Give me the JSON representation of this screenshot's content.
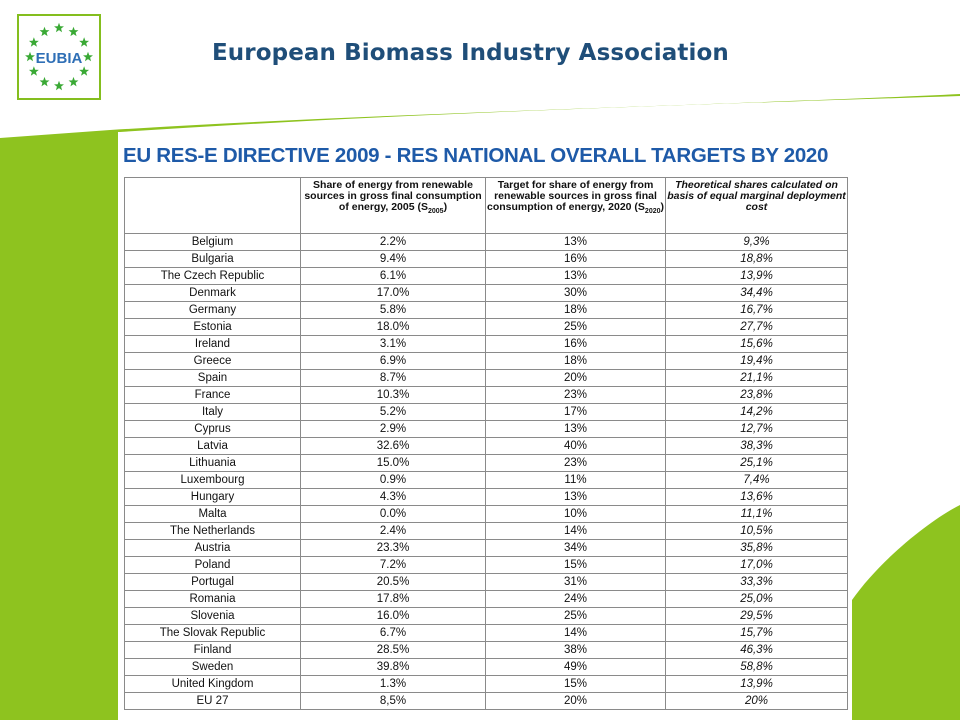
{
  "header": {
    "organization": "European Biomass Industry Association",
    "logo_text": "EUBIA"
  },
  "slide": {
    "title": "EU RES-E DIRECTIVE 2009  -  RES NATIONAL OVERALL TARGETS BY 2020"
  },
  "table": {
    "columns": [
      "",
      "Share of energy from renewable sources in gross final consumption of energy, 2005 (S2005)",
      "Target for share of energy from renewable sources in gross final consumption of energy, 2020 (S2020)",
      "Theoretical shares calculated on basis of equal marginal deployment cost"
    ],
    "rows": [
      {
        "country": "Belgium",
        "share_2005": "2.2%",
        "target_2020": "13%",
        "theoretical": "9,3%"
      },
      {
        "country": "Bulgaria",
        "share_2005": "9.4%",
        "target_2020": "16%",
        "theoretical": "18,8%"
      },
      {
        "country": "The Czech Republic",
        "share_2005": "6.1%",
        "target_2020": "13%",
        "theoretical": "13,9%"
      },
      {
        "country": "Denmark",
        "share_2005": "17.0%",
        "target_2020": "30%",
        "theoretical": "34,4%"
      },
      {
        "country": "Germany",
        "share_2005": "5.8%",
        "target_2020": "18%",
        "theoretical": "16,7%"
      },
      {
        "country": "Estonia",
        "share_2005": "18.0%",
        "target_2020": "25%",
        "theoretical": "27,7%"
      },
      {
        "country": "Ireland",
        "share_2005": "3.1%",
        "target_2020": "16%",
        "theoretical": "15,6%"
      },
      {
        "country": "Greece",
        "share_2005": "6.9%",
        "target_2020": "18%",
        "theoretical": "19,4%"
      },
      {
        "country": "Spain",
        "share_2005": "8.7%",
        "target_2020": "20%",
        "theoretical": "21,1%"
      },
      {
        "country": "France",
        "share_2005": "10.3%",
        "target_2020": "23%",
        "theoretical": "23,8%"
      },
      {
        "country": "Italy",
        "share_2005": "5.2%",
        "target_2020": "17%",
        "theoretical": "14,2%"
      },
      {
        "country": "Cyprus",
        "share_2005": "2.9%",
        "target_2020": "13%",
        "theoretical": "12,7%"
      },
      {
        "country": "Latvia",
        "share_2005": "32.6%",
        "target_2020": "40%",
        "theoretical": "38,3%"
      },
      {
        "country": "Lithuania",
        "share_2005": "15.0%",
        "target_2020": "23%",
        "theoretical": "25,1%"
      },
      {
        "country": "Luxembourg",
        "share_2005": "0.9%",
        "target_2020": "11%",
        "theoretical": "7,4%"
      },
      {
        "country": "Hungary",
        "share_2005": "4.3%",
        "target_2020": "13%",
        "theoretical": "13,6%"
      },
      {
        "country": "Malta",
        "share_2005": "0.0%",
        "target_2020": "10%",
        "theoretical": "11,1%"
      },
      {
        "country": "The Netherlands",
        "share_2005": "2.4%",
        "target_2020": "14%",
        "theoretical": "10,5%"
      },
      {
        "country": "Austria",
        "share_2005": "23.3%",
        "target_2020": "34%",
        "theoretical": "35,8%"
      },
      {
        "country": "Poland",
        "share_2005": "7.2%",
        "target_2020": "15%",
        "theoretical": "17,0%"
      },
      {
        "country": "Portugal",
        "share_2005": "20.5%",
        "target_2020": "31%",
        "theoretical": "33,3%"
      },
      {
        "country": "Romania",
        "share_2005": "17.8%",
        "target_2020": "24%",
        "theoretical": "25,0%"
      },
      {
        "country": "Slovenia",
        "share_2005": "16.0%",
        "target_2020": "25%",
        "theoretical": "29,5%"
      },
      {
        "country": "The Slovak Republic",
        "share_2005": "6.7%",
        "target_2020": "14%",
        "theoretical": "15,7%"
      },
      {
        "country": "Finland",
        "share_2005": "28.5%",
        "target_2020": "38%",
        "theoretical": "46,3%"
      },
      {
        "country": "Sweden",
        "share_2005": "39.8%",
        "target_2020": "49%",
        "theoretical": "58,8%"
      },
      {
        "country": "United Kingdom",
        "share_2005": "1.3%",
        "target_2020": "15%",
        "theoretical": "13,9%"
      },
      {
        "country": "EU 27",
        "share_2005": "8,5%",
        "target_2020": "20%",
        "theoretical": "20%"
      }
    ]
  },
  "colors": {
    "brand_green": "#8ec31f",
    "title_blue": "#1e5aa8",
    "org_blue": "#1f4e79",
    "logo_star_green": "#3aa935"
  }
}
